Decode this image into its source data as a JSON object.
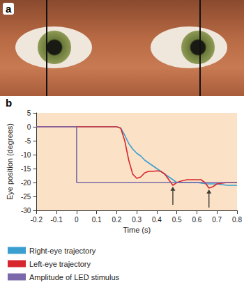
{
  "panel_a": {
    "label": "a"
  },
  "chart_data": {
    "type": "line",
    "title": "b",
    "x_label": "Time (s)",
    "y_label": "Eye position (degrees)",
    "xlim": [
      -0.2,
      0.8
    ],
    "xticks": [
      -0.2,
      -0.1,
      0,
      0.1,
      0.2,
      0.3,
      0.4,
      0.5,
      0.6,
      0.7,
      0.8
    ],
    "ylim": [
      -30,
      5
    ],
    "yticks": [
      5,
      0,
      -5,
      -10,
      -15,
      -20,
      -25,
      -30
    ],
    "grid": false,
    "legend": "bottom-left",
    "marker": "none",
    "line_style": "solid",
    "series": [
      {
        "name": "Right-eye trajectory",
        "color": "#3a9fd0",
        "x": [
          -0.2,
          0.2,
          0.22,
          0.24,
          0.26,
          0.28,
          0.3,
          0.32,
          0.34,
          0.36,
          0.38,
          0.4,
          0.42,
          0.44,
          0.46,
          0.48,
          0.5,
          0.52,
          0.55,
          0.6,
          0.65,
          0.7,
          0.75,
          0.8
        ],
        "values": [
          0,
          0,
          -0.5,
          -3,
          -6,
          -8,
          -9.5,
          -10.5,
          -12,
          -13,
          -14,
          -15,
          -16,
          -17,
          -18,
          -19,
          -20,
          -20,
          -20,
          -20,
          -20.5,
          -20.5,
          -21,
          -21
        ]
      },
      {
        "name": "Left-eye trajectory",
        "color": "#d8262e",
        "x": [
          -0.2,
          0.2,
          0.22,
          0.24,
          0.26,
          0.28,
          0.3,
          0.32,
          0.34,
          0.36,
          0.38,
          0.4,
          0.42,
          0.44,
          0.46,
          0.48,
          0.5,
          0.52,
          0.55,
          0.58,
          0.62,
          0.64,
          0.66,
          0.68,
          0.7,
          0.75,
          0.8
        ],
        "values": [
          0,
          0,
          -0.5,
          -5,
          -12,
          -17,
          -18.5,
          -18,
          -16.5,
          -16,
          -16,
          -15.8,
          -16,
          -17,
          -19,
          -21,
          -20,
          -19.5,
          -19,
          -19,
          -19,
          -20,
          -22,
          -21.5,
          -20.5,
          -20,
          -20
        ]
      },
      {
        "name": "Amplitude of LED stimulus",
        "color": "#7a68aa",
        "x": [
          -0.2,
          0,
          0,
          0.8
        ],
        "values": [
          0,
          0,
          -20,
          -20
        ]
      }
    ],
    "arrows": [
      {
        "x": 0.48,
        "y": -21
      },
      {
        "x": 0.66,
        "y": -22
      }
    ]
  }
}
